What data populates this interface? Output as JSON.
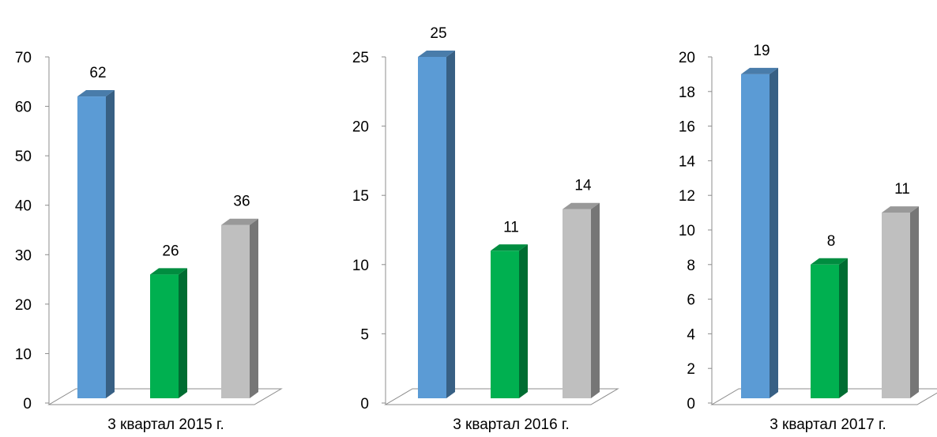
{
  "chart_data": [
    {
      "type": "bar",
      "categories": [
        "3 квартал 2015 г."
      ],
      "series": [
        {
          "values": [
            62
          ],
          "color": "#5B9BD5"
        },
        {
          "values": [
            26
          ],
          "color": "#00B050"
        },
        {
          "values": [
            36
          ],
          "color": "#BFBFBF"
        }
      ],
      "ylim": [
        0,
        70
      ],
      "yticks": [
        0,
        10,
        20,
        30,
        40,
        50,
        60,
        70
      ],
      "xlabel": "",
      "ylabel": "",
      "title": "",
      "grid": false,
      "legend": false
    },
    {
      "type": "bar",
      "categories": [
        "3 квартал 2016 г."
      ],
      "series": [
        {
          "values": [
            25
          ],
          "color": "#5B9BD5"
        },
        {
          "values": [
            11
          ],
          "color": "#00B050"
        },
        {
          "values": [
            14
          ],
          "color": "#BFBFBF"
        }
      ],
      "ylim": [
        0,
        25
      ],
      "yticks": [
        0,
        5,
        10,
        15,
        20,
        25
      ],
      "xlabel": "",
      "ylabel": "",
      "title": "",
      "grid": false,
      "legend": false
    },
    {
      "type": "bar",
      "categories": [
        "3 квартал 2017 г."
      ],
      "series": [
        {
          "values": [
            19
          ],
          "color": "#5B9BD5"
        },
        {
          "values": [
            8
          ],
          "color": "#00B050"
        },
        {
          "values": [
            11
          ],
          "color": "#BFBFBF"
        }
      ],
      "ylim": [
        0,
        20
      ],
      "yticks": [
        0,
        2,
        4,
        6,
        8,
        10,
        12,
        14,
        16,
        18,
        20
      ],
      "xlabel": "",
      "ylabel": "",
      "title": "",
      "grid": false,
      "legend": false
    }
  ]
}
